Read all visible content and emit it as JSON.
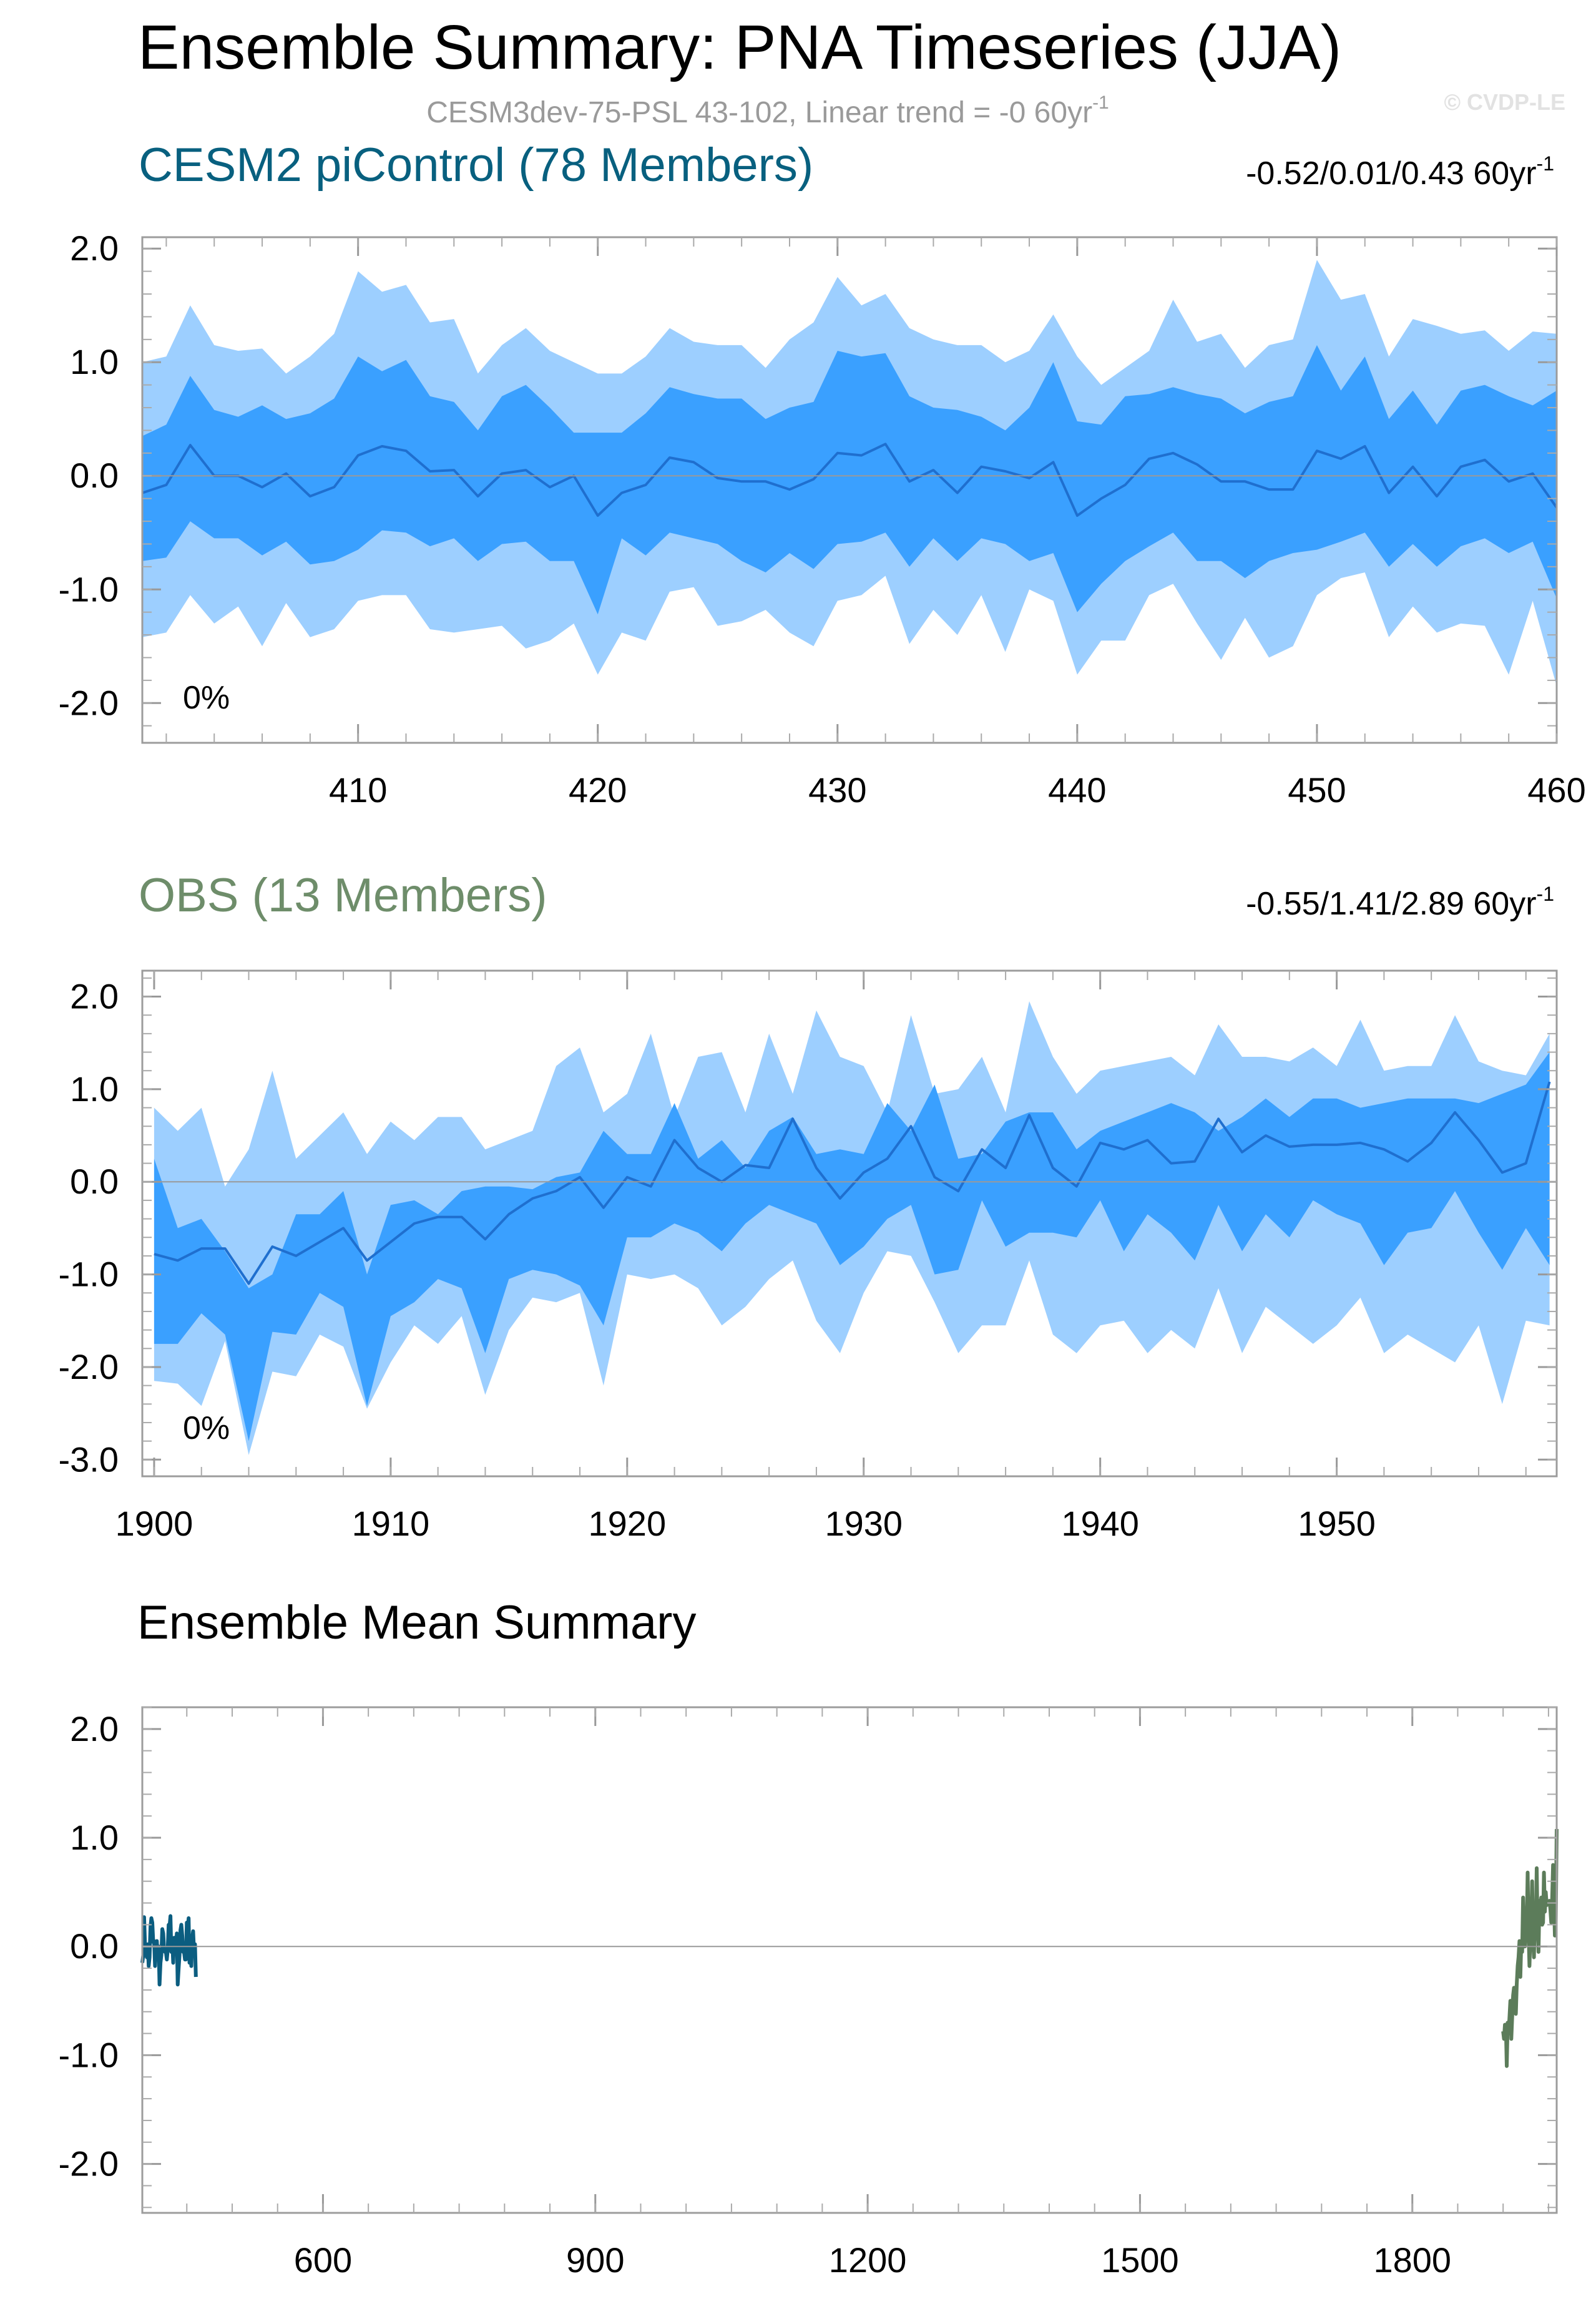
{
  "title": "Ensemble Summary: PNA Timeseries (JJA)",
  "subtitle": "CESM3dev-75-PSL 43-102, Linear trend = -0 60yr",
  "subtitle_sup": "-1",
  "credit": "© CVDP-LE",
  "colors": {
    "outer_band": "#9dcfff",
    "inner_band": "#3aa0ff",
    "mean_line": "#1f6fcf",
    "model_title": "#08607f",
    "obs_title": "#6e8d6a",
    "model_line": "#0b5d80",
    "obs_line": "#5c7c5a"
  },
  "chart_data": [
    {
      "type": "area",
      "title": "CESM2 piControl (78 Members)",
      "stats": "-0.52/0.01/0.43 60yr",
      "stats_sup": "-1",
      "percent_label": "0%",
      "xlim": [
        401,
        460
      ],
      "ylim": [
        -2.35,
        2.1
      ],
      "xticks": [
        410,
        420,
        430,
        440,
        450,
        460
      ],
      "xtick_labels": [
        "410",
        "420",
        "430",
        "440",
        "450",
        "460"
      ],
      "yticks": [
        2.0,
        1.0,
        0.0,
        -1.0,
        -2.0
      ],
      "ytick_labels": [
        "2.0",
        "1.0",
        "0.0",
        "-1.0",
        "-2.0"
      ],
      "x": [
        401,
        402,
        403,
        404,
        405,
        406,
        407,
        408,
        409,
        410,
        411,
        412,
        413,
        414,
        415,
        416,
        417,
        418,
        419,
        420,
        421,
        422,
        423,
        424,
        425,
        426,
        427,
        428,
        429,
        430,
        431,
        432,
        433,
        434,
        435,
        436,
        437,
        438,
        439,
        440,
        441,
        442,
        443,
        444,
        445,
        446,
        447,
        448,
        449,
        450,
        451,
        452,
        453,
        454,
        455,
        456,
        457,
        458,
        459,
        460
      ],
      "series": [
        {
          "name": "p97.5",
          "values": [
            1.0,
            1.05,
            1.5,
            1.15,
            1.1,
            1.12,
            0.9,
            1.05,
            1.25,
            1.8,
            1.62,
            1.68,
            1.35,
            1.38,
            0.9,
            1.15,
            1.3,
            1.1,
            1.0,
            0.9,
            0.9,
            1.05,
            1.3,
            1.18,
            1.15,
            1.15,
            0.95,
            1.2,
            1.35,
            1.75,
            1.5,
            1.6,
            1.3,
            1.2,
            1.15,
            1.15,
            1.0,
            1.1,
            1.42,
            1.05,
            0.8,
            0.95,
            1.1,
            1.55,
            1.18,
            1.25,
            0.95,
            1.15,
            1.2,
            1.9,
            1.55,
            1.6,
            1.05,
            1.38,
            1.32,
            1.25,
            1.28,
            1.1,
            1.27,
            1.25
          ]
        },
        {
          "name": "p84",
          "values": [
            0.35,
            0.45,
            0.88,
            0.58,
            0.52,
            0.62,
            0.5,
            0.55,
            0.68,
            1.05,
            0.92,
            1.02,
            0.7,
            0.65,
            0.4,
            0.7,
            0.8,
            0.6,
            0.38,
            0.38,
            0.38,
            0.55,
            0.78,
            0.72,
            0.68,
            0.68,
            0.5,
            0.6,
            0.65,
            1.1,
            1.05,
            1.08,
            0.7,
            0.6,
            0.58,
            0.52,
            0.4,
            0.6,
            1.0,
            0.48,
            0.45,
            0.7,
            0.72,
            0.78,
            0.72,
            0.68,
            0.55,
            0.65,
            0.7,
            1.15,
            0.75,
            1.05,
            0.5,
            0.75,
            0.45,
            0.75,
            0.8,
            0.7,
            0.62,
            0.75
          ]
        },
        {
          "name": "mean",
          "values": [
            -0.15,
            -0.08,
            0.27,
            0.0,
            0.0,
            -0.1,
            0.02,
            -0.18,
            -0.1,
            0.18,
            0.26,
            0.22,
            0.04,
            0.05,
            -0.18,
            0.02,
            0.05,
            -0.1,
            0.0,
            -0.35,
            -0.15,
            -0.08,
            0.16,
            0.12,
            -0.02,
            -0.05,
            -0.05,
            -0.12,
            -0.03,
            0.2,
            0.18,
            0.28,
            -0.05,
            0.05,
            -0.15,
            0.08,
            0.04,
            -0.02,
            0.12,
            -0.35,
            -0.2,
            -0.08,
            0.15,
            0.2,
            0.1,
            -0.05,
            -0.05,
            -0.12,
            -0.12,
            0.22,
            0.15,
            0.26,
            -0.15,
            0.08,
            -0.18,
            0.08,
            0.14,
            -0.05,
            0.02,
            -0.28
          ]
        },
        {
          "name": "p16",
          "values": [
            -0.75,
            -0.72,
            -0.4,
            -0.55,
            -0.55,
            -0.7,
            -0.58,
            -0.78,
            -0.75,
            -0.65,
            -0.48,
            -0.5,
            -0.62,
            -0.55,
            -0.75,
            -0.6,
            -0.58,
            -0.75,
            -0.75,
            -1.22,
            -0.55,
            -0.7,
            -0.5,
            -0.55,
            -0.6,
            -0.75,
            -0.85,
            -0.68,
            -0.82,
            -0.6,
            -0.58,
            -0.5,
            -0.8,
            -0.55,
            -0.75,
            -0.55,
            -0.6,
            -0.75,
            -0.68,
            -1.2,
            -0.95,
            -0.75,
            -0.62,
            -0.5,
            -0.75,
            -0.75,
            -0.9,
            -0.75,
            -0.68,
            -0.65,
            -0.58,
            -0.5,
            -0.8,
            -0.6,
            -0.8,
            -0.62,
            -0.55,
            -0.68,
            -0.58,
            -1.08
          ]
        },
        {
          "name": "p2.5",
          "values": [
            -1.42,
            -1.38,
            -1.05,
            -1.3,
            -1.15,
            -1.5,
            -1.12,
            -1.42,
            -1.35,
            -1.1,
            -1.05,
            -1.05,
            -1.35,
            -1.38,
            -1.35,
            -1.32,
            -1.52,
            -1.45,
            -1.3,
            -1.75,
            -1.38,
            -1.45,
            -1.02,
            -0.98,
            -1.32,
            -1.28,
            -1.18,
            -1.38,
            -1.5,
            -1.1,
            -1.05,
            -0.88,
            -1.48,
            -1.18,
            -1.4,
            -1.05,
            -1.55,
            -1.0,
            -1.1,
            -1.75,
            -1.45,
            -1.45,
            -1.05,
            -0.95,
            -1.3,
            -1.62,
            -1.25,
            -1.6,
            -1.5,
            -1.05,
            -0.9,
            -0.85,
            -1.42,
            -1.15,
            -1.38,
            -1.3,
            -1.32,
            -1.75,
            -1.1,
            -1.85
          ]
        }
      ]
    },
    {
      "type": "area",
      "title": "OBS (13 Members)",
      "stats": "-0.55/1.41/2.89 60yr",
      "stats_sup": "-1",
      "percent_label": "0%",
      "xlim": [
        1899.5,
        1959.3
      ],
      "ylim": [
        -3.18,
        2.28
      ],
      "xticks": [
        1900,
        1910,
        1920,
        1930,
        1940,
        1950
      ],
      "xtick_labels": [
        "1900",
        "1910",
        "1920",
        "1930",
        "1940",
        "1950"
      ],
      "yticks": [
        2.0,
        1.0,
        0.0,
        -1.0,
        -2.0,
        -3.0
      ],
      "ytick_labels": [
        "2.0",
        "1.0",
        "0.0",
        "-1.0",
        "-2.0",
        "-3.0"
      ],
      "x": [
        1900,
        1901,
        1902,
        1903,
        1904,
        1905,
        1906,
        1907,
        1908,
        1909,
        1910,
        1911,
        1912,
        1913,
        1914,
        1915,
        1916,
        1917,
        1918,
        1919,
        1920,
        1921,
        1922,
        1923,
        1924,
        1925,
        1926,
        1927,
        1928,
        1929,
        1930,
        1931,
        1932,
        1933,
        1934,
        1935,
        1936,
        1937,
        1938,
        1939,
        1940,
        1941,
        1942,
        1943,
        1944,
        1945,
        1946,
        1947,
        1948,
        1949,
        1950,
        1951,
        1952,
        1953,
        1954,
        1955,
        1956,
        1957,
        1958,
        1959
      ],
      "series": [
        {
          "name": "p97.5",
          "values": [
            0.8,
            0.55,
            0.8,
            -0.05,
            0.35,
            1.2,
            0.25,
            0.5,
            0.75,
            0.3,
            0.65,
            0.45,
            0.7,
            0.7,
            0.35,
            0.45,
            0.55,
            1.25,
            1.45,
            0.75,
            0.95,
            1.6,
            0.7,
            1.35,
            1.4,
            0.75,
            1.6,
            0.95,
            1.85,
            1.35,
            1.25,
            0.75,
            1.8,
            0.95,
            1.0,
            1.35,
            0.75,
            1.95,
            1.35,
            0.95,
            1.2,
            1.25,
            1.3,
            1.35,
            1.15,
            1.7,
            1.35,
            1.35,
            1.3,
            1.45,
            1.25,
            1.75,
            1.2,
            1.25,
            1.25,
            1.8,
            1.3,
            1.2,
            1.15,
            1.6
          ]
        },
        {
          "name": "p84",
          "values": [
            0.25,
            -0.5,
            -0.4,
            -0.75,
            -1.15,
            -1.0,
            -0.35,
            -0.35,
            -0.1,
            -1.0,
            -0.25,
            -0.2,
            -0.35,
            -0.1,
            -0.05,
            -0.05,
            -0.08,
            0.05,
            0.1,
            0.55,
            0.3,
            0.3,
            0.85,
            0.25,
            0.45,
            0.15,
            0.55,
            0.7,
            0.3,
            0.35,
            0.3,
            0.85,
            0.55,
            1.05,
            0.25,
            0.3,
            0.65,
            0.75,
            0.75,
            0.35,
            0.55,
            0.65,
            0.75,
            0.85,
            0.75,
            0.55,
            0.7,
            0.9,
            0.7,
            0.9,
            0.9,
            0.8,
            0.85,
            0.9,
            0.9,
            0.9,
            0.85,
            0.95,
            1.05,
            1.4
          ]
        },
        {
          "name": "mean",
          "values": [
            -0.78,
            -0.85,
            -0.72,
            -0.72,
            -1.1,
            -0.7,
            -0.8,
            -0.65,
            -0.5,
            -0.85,
            -0.65,
            -0.45,
            -0.38,
            -0.38,
            -0.62,
            -0.35,
            -0.18,
            -0.1,
            0.05,
            -0.28,
            0.05,
            -0.05,
            0.45,
            0.15,
            0.0,
            0.18,
            0.15,
            0.68,
            0.15,
            -0.18,
            0.1,
            0.25,
            0.6,
            0.05,
            -0.1,
            0.35,
            0.15,
            0.72,
            0.15,
            -0.05,
            0.42,
            0.35,
            0.45,
            0.2,
            0.22,
            0.68,
            0.32,
            0.5,
            0.38,
            0.4,
            0.4,
            0.42,
            0.35,
            0.22,
            0.42,
            0.75,
            0.45,
            0.1,
            0.2,
            1.08
          ]
        },
        {
          "name": "p16",
          "values": [
            -1.75,
            -1.75,
            -1.42,
            -1.65,
            -2.8,
            -1.62,
            -1.65,
            -1.2,
            -1.35,
            -2.42,
            -1.45,
            -1.3,
            -1.05,
            -1.15,
            -1.85,
            -1.05,
            -0.95,
            -1.0,
            -1.12,
            -1.55,
            -0.6,
            -0.6,
            -0.45,
            -0.55,
            -0.75,
            -0.45,
            -0.25,
            -0.35,
            -0.45,
            -0.9,
            -0.7,
            -0.4,
            -0.25,
            -1.0,
            -0.95,
            -0.2,
            -0.7,
            -0.55,
            -0.55,
            -0.6,
            -0.2,
            -0.75,
            -0.35,
            -0.55,
            -0.85,
            -0.25,
            -0.75,
            -0.35,
            -0.6,
            -0.2,
            -0.35,
            -0.45,
            -0.9,
            -0.55,
            -0.5,
            -0.1,
            -0.55,
            -0.95,
            -0.5,
            -0.9
          ]
        },
        {
          "name": "p2.5",
          "values": [
            -2.15,
            -2.18,
            -2.42,
            -1.72,
            -2.95,
            -2.05,
            -2.1,
            -1.65,
            -1.78,
            -2.45,
            -1.95,
            -1.55,
            -1.75,
            -1.45,
            -2.3,
            -1.6,
            -1.25,
            -1.3,
            -1.2,
            -2.2,
            -1.0,
            -1.05,
            -1.0,
            -1.15,
            -1.55,
            -1.35,
            -1.05,
            -0.85,
            -1.5,
            -1.85,
            -1.2,
            -0.75,
            -0.8,
            -1.3,
            -1.85,
            -1.55,
            -1.55,
            -0.85,
            -1.65,
            -1.85,
            -1.55,
            -1.5,
            -1.85,
            -1.6,
            -1.8,
            -1.15,
            -1.85,
            -1.35,
            -1.55,
            -1.75,
            -1.55,
            -1.25,
            -1.85,
            -1.65,
            -1.8,
            -1.95,
            -1.55,
            -2.4,
            -1.5,
            -1.55
          ]
        }
      ]
    },
    {
      "type": "line",
      "title": "Ensemble Mean Summary",
      "xlim": [
        401,
        1959
      ],
      "ylim": [
        -2.45,
        2.2
      ],
      "xticks": [
        600,
        900,
        1200,
        1500,
        1800
      ],
      "xtick_labels": [
        "600",
        "900",
        "1200",
        "1500",
        "1800"
      ],
      "yticks": [
        2.0,
        1.0,
        0.0,
        -1.0,
        -2.0
      ],
      "ytick_labels": [
        "2.0",
        "1.0",
        "0.0",
        "-1.0",
        "-2.0"
      ],
      "series": [
        {
          "name": "CESM2 piControl (78 Members)",
          "source": 0
        },
        {
          "name": "OBS (13 Members)",
          "source": 1
        }
      ]
    }
  ]
}
